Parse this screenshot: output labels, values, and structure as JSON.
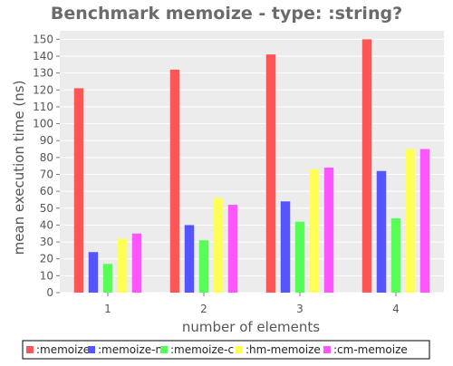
{
  "chart_data": {
    "type": "bar",
    "title": "Benchmark memoize - type: :string?",
    "xlabel": "number of elements",
    "ylabel": "mean execution time (ns)",
    "categories": [
      "1",
      "2",
      "3",
      "4"
    ],
    "ylim": [
      0,
      155
    ],
    "yticks": [
      0,
      10,
      20,
      30,
      40,
      50,
      60,
      70,
      80,
      90,
      100,
      110,
      120,
      130,
      140,
      150
    ],
    "grid": true,
    "legend_position": "bottom",
    "series": [
      {
        "name": ":memoize",
        "color": "#ff5555",
        "values": [
          121,
          132,
          141,
          150
        ]
      },
      {
        "name": ":memoize-n",
        "color": "#5555ff",
        "values": [
          24,
          40,
          54,
          72
        ]
      },
      {
        "name": ":memoize-c",
        "color": "#55ff55",
        "values": [
          17,
          31,
          42,
          44
        ]
      },
      {
        "name": ":hm-memoize",
        "color": "#ffff55",
        "values": [
          32,
          56,
          73,
          85
        ]
      },
      {
        "name": ":cm-memoize",
        "color": "#ff55ff",
        "values": [
          35,
          52,
          74,
          85
        ]
      }
    ]
  }
}
